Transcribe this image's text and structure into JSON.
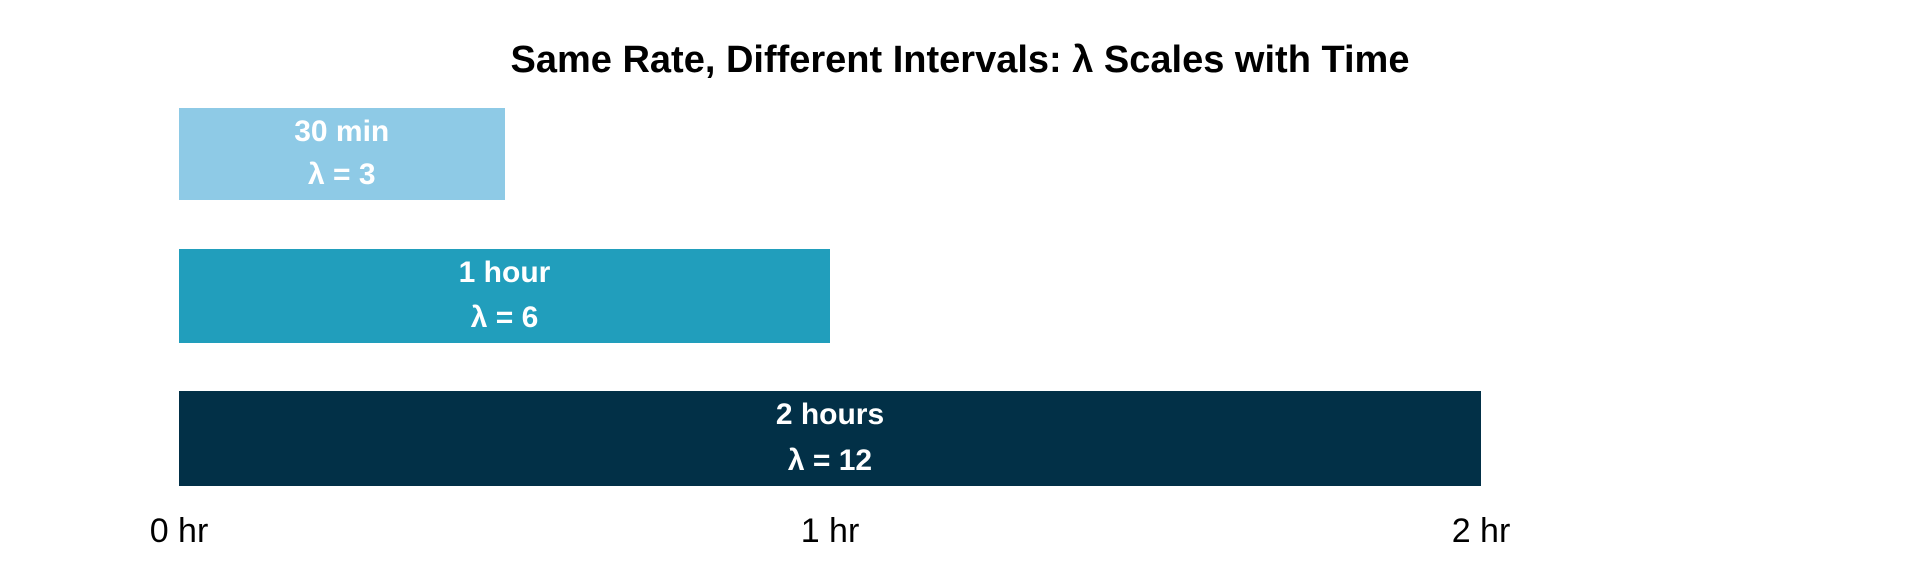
{
  "chart_data": {
    "type": "bar",
    "orientation": "horizontal",
    "title": "Same Rate, Different Intervals: λ Scales with Time",
    "xlabel": "",
    "ylabel": "",
    "grid": false,
    "legend": false,
    "background_color": "#FFFFFF",
    "title_color": "#000000",
    "tick_color": "#000000",
    "x_axis": {
      "unit": "hr",
      "range": [
        0,
        2
      ],
      "ticks": [
        {
          "value": 0,
          "label": "0 hr"
        },
        {
          "value": 1,
          "label": "1 hr"
        },
        {
          "value": 2,
          "label": "2 hr"
        }
      ]
    },
    "bars": [
      {
        "interval_label": "30 min",
        "lambda_label": "λ = 3",
        "duration_hours": 0.5,
        "lambda": 3,
        "color": "#8ECAE6",
        "text_color": "#FFFFFF"
      },
      {
        "interval_label": "1 hour",
        "lambda_label": "λ = 6",
        "duration_hours": 1,
        "lambda": 6,
        "color": "#219EBC",
        "text_color": "#FFFFFF"
      },
      {
        "interval_label": "2 hours",
        "lambda_label": "λ = 12",
        "duration_hours": 2,
        "lambda": 12,
        "color": "#023047",
        "text_color": "#FFFFFF"
      }
    ]
  }
}
